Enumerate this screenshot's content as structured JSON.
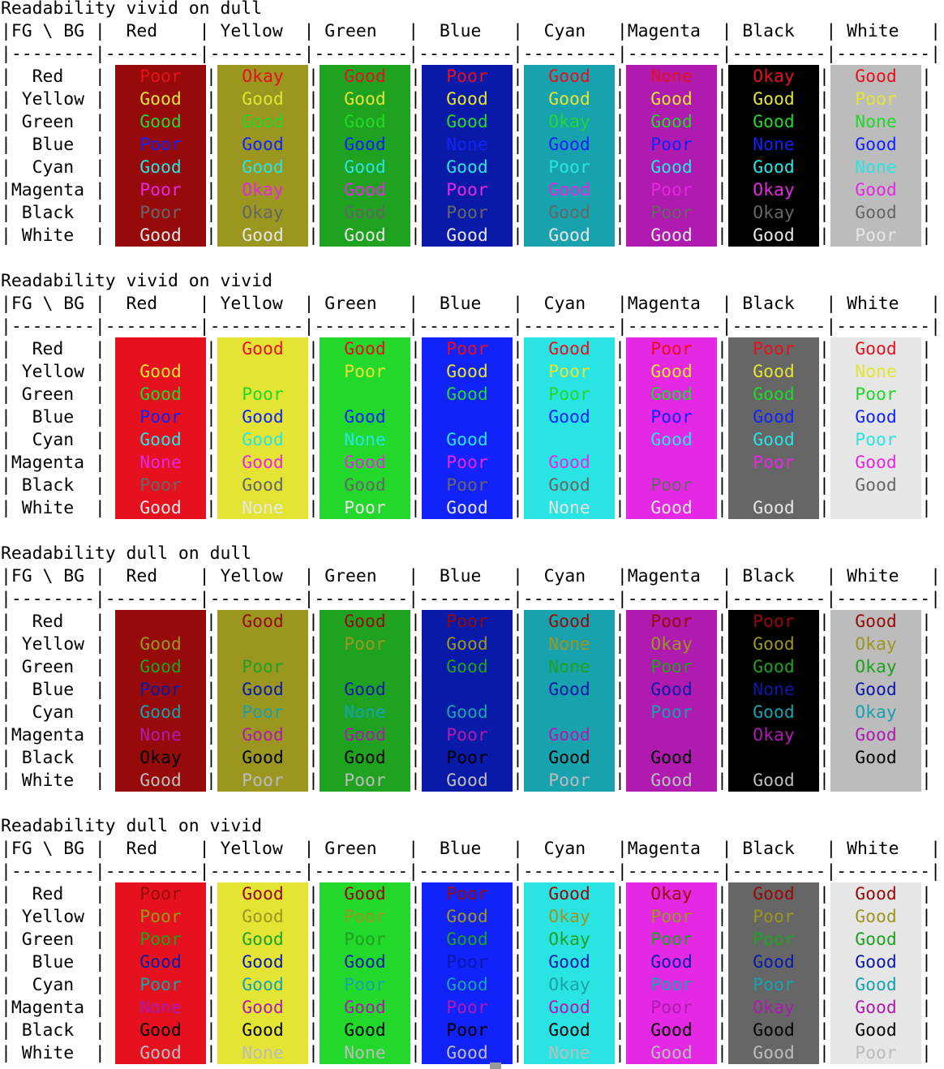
{
  "colors": {
    "vivid": {
      "Red": "#e5111e",
      "Yellow": "#e4e434",
      "Green": "#22d82a",
      "Blue": "#1122fa",
      "Cyan": "#2ae4e4",
      "Magenta": "#e428e4",
      "Black": "#666666",
      "White": "#e6e6e6"
    },
    "dull": {
      "Red": "#960a0a",
      "Yellow": "#9a9620",
      "Green": "#1fa21f",
      "Blue": "#0a1aa8",
      "Cyan": "#17a2ae",
      "Magenta": "#af1aaf",
      "Black": "#000000",
      "White": "#bcbcbc"
    }
  },
  "header_line": "|FG \\ BG |  Red    | Yellow  | Green   |  Blue   |  Cyan   |Magenta  | Black   | White   |",
  "sep_line": "|--------|---------|---------|---------|---------|---------|---------|---------|---------|",
  "row_labels": [
    "|  Red   |",
    "| Yellow |",
    "| Green  |",
    "|  Blue  |",
    "|  Cyan  |",
    "|Magenta |",
    "| Black  |",
    "| White  |"
  ],
  "colnames": [
    "Red",
    "Yellow",
    "Green",
    "Blue",
    "Cyan",
    "Magenta",
    "Black",
    "White"
  ],
  "sections": [
    {
      "title": "Readability vivid on dull",
      "fg": "vivid",
      "bg": "dull",
      "cells": [
        [
          "Poor",
          "Okay",
          "Good",
          "Poor",
          "Good",
          "None",
          "Okay",
          "Good"
        ],
        [
          "Good",
          "Good",
          "Good",
          "Good",
          "Good",
          "Good",
          "Good",
          "Poor"
        ],
        [
          "Good",
          "Good",
          "Good",
          "Good",
          "Okay",
          "Good",
          "Good",
          "None"
        ],
        [
          "Poor",
          "Good",
          "Good",
          "None",
          "Good",
          "Poor",
          "None",
          "Good"
        ],
        [
          "Good",
          "Good",
          "Good",
          "Good",
          "Poor",
          "Good",
          "Good",
          "None"
        ],
        [
          "Poor",
          "Okay",
          "Good",
          "Poor",
          "Good",
          "Poor",
          "Okay",
          "Good"
        ],
        [
          "Poor",
          "Okay",
          "Good",
          "Poor",
          "Good",
          "Poor",
          "Okay",
          "Good"
        ],
        [
          "Good",
          "Good",
          "Good",
          "Good",
          "Good",
          "Good",
          "Good",
          "Poor"
        ]
      ]
    },
    {
      "title": "Readability vivid on vivid",
      "fg": "vivid",
      "bg": "vivid",
      "cells": [
        [
          "",
          "Good",
          "Good",
          "Poor",
          "Good",
          "Poor",
          "Poor",
          "Good"
        ],
        [
          "Good",
          "",
          "Poor",
          "Good",
          "Poor",
          "Good",
          "Good",
          "None"
        ],
        [
          "Good",
          "Poor",
          "",
          "Good",
          "Poor",
          "Good",
          "Good",
          "Poor"
        ],
        [
          "Poor",
          "Good",
          "Good",
          "",
          "Good",
          "Poor",
          "Good",
          "Good"
        ],
        [
          "Good",
          "Good",
          "None",
          "Good",
          "",
          "Good",
          "Good",
          "Poor"
        ],
        [
          "None",
          "Good",
          "Good",
          "Poor",
          "Good",
          "",
          "Poor",
          "Good"
        ],
        [
          "Poor",
          "Good",
          "Good",
          "Poor",
          "Good",
          "Poor",
          "",
          "Good"
        ],
        [
          "Good",
          "None",
          "Poor",
          "Good",
          "None",
          "Good",
          "Good",
          ""
        ]
      ]
    },
    {
      "title": "Readability dull on dull",
      "fg": "dull",
      "bg": "dull",
      "cells": [
        [
          "",
          "Good",
          "Good",
          "Poor",
          "Good",
          "Poor",
          "Poor",
          "Good"
        ],
        [
          "Good",
          "",
          "Poor",
          "Good",
          "None",
          "Okay",
          "Good",
          "Okay"
        ],
        [
          "Good",
          "Poor",
          "",
          "Good",
          "None",
          "Poor",
          "Good",
          "Okay"
        ],
        [
          "Poor",
          "Good",
          "Good",
          "",
          "Good",
          "Good",
          "None",
          "Good"
        ],
        [
          "Good",
          "Poor",
          "None",
          "Good",
          "",
          "Poor",
          "Good",
          "Okay"
        ],
        [
          "None",
          "Good",
          "Good",
          "Poor",
          "Good",
          "",
          "Okay",
          "Good"
        ],
        [
          "Okay",
          "Good",
          "Good",
          "Poor",
          "Good",
          "Good",
          "",
          "Good"
        ],
        [
          "Good",
          "Poor",
          "Poor",
          "Good",
          "Poor",
          "Good",
          "Good",
          ""
        ]
      ]
    },
    {
      "title": "Readability dull on vivid",
      "fg": "dull",
      "bg": "vivid",
      "cells": [
        [
          "Poor",
          "Good",
          "Good",
          "Poor",
          "Good",
          "Okay",
          "Good",
          "Good"
        ],
        [
          "Poor",
          "Good",
          "Poor",
          "Good",
          "Okay",
          "Poor",
          "Poor",
          "Good"
        ],
        [
          "Poor",
          "Good",
          "Poor",
          "Good",
          "Okay",
          "Poor",
          "Poor",
          "Good"
        ],
        [
          "Good",
          "Good",
          "Good",
          "Poor",
          "Good",
          "Good",
          "Good",
          "Good"
        ],
        [
          "Poor",
          "Good",
          "Poor",
          "Good",
          "Okay",
          "Poor",
          "Poor",
          "Good"
        ],
        [
          "None",
          "Good",
          "Good",
          "Poor",
          "Good",
          "Poor",
          "Okay",
          "Good"
        ],
        [
          "Good",
          "Good",
          "Good",
          "Poor",
          "Good",
          "Good",
          "Good",
          "Good"
        ],
        [
          "Good",
          "None",
          "None",
          "Good",
          "None",
          "Good",
          "Good",
          "Poor"
        ]
      ]
    }
  ]
}
